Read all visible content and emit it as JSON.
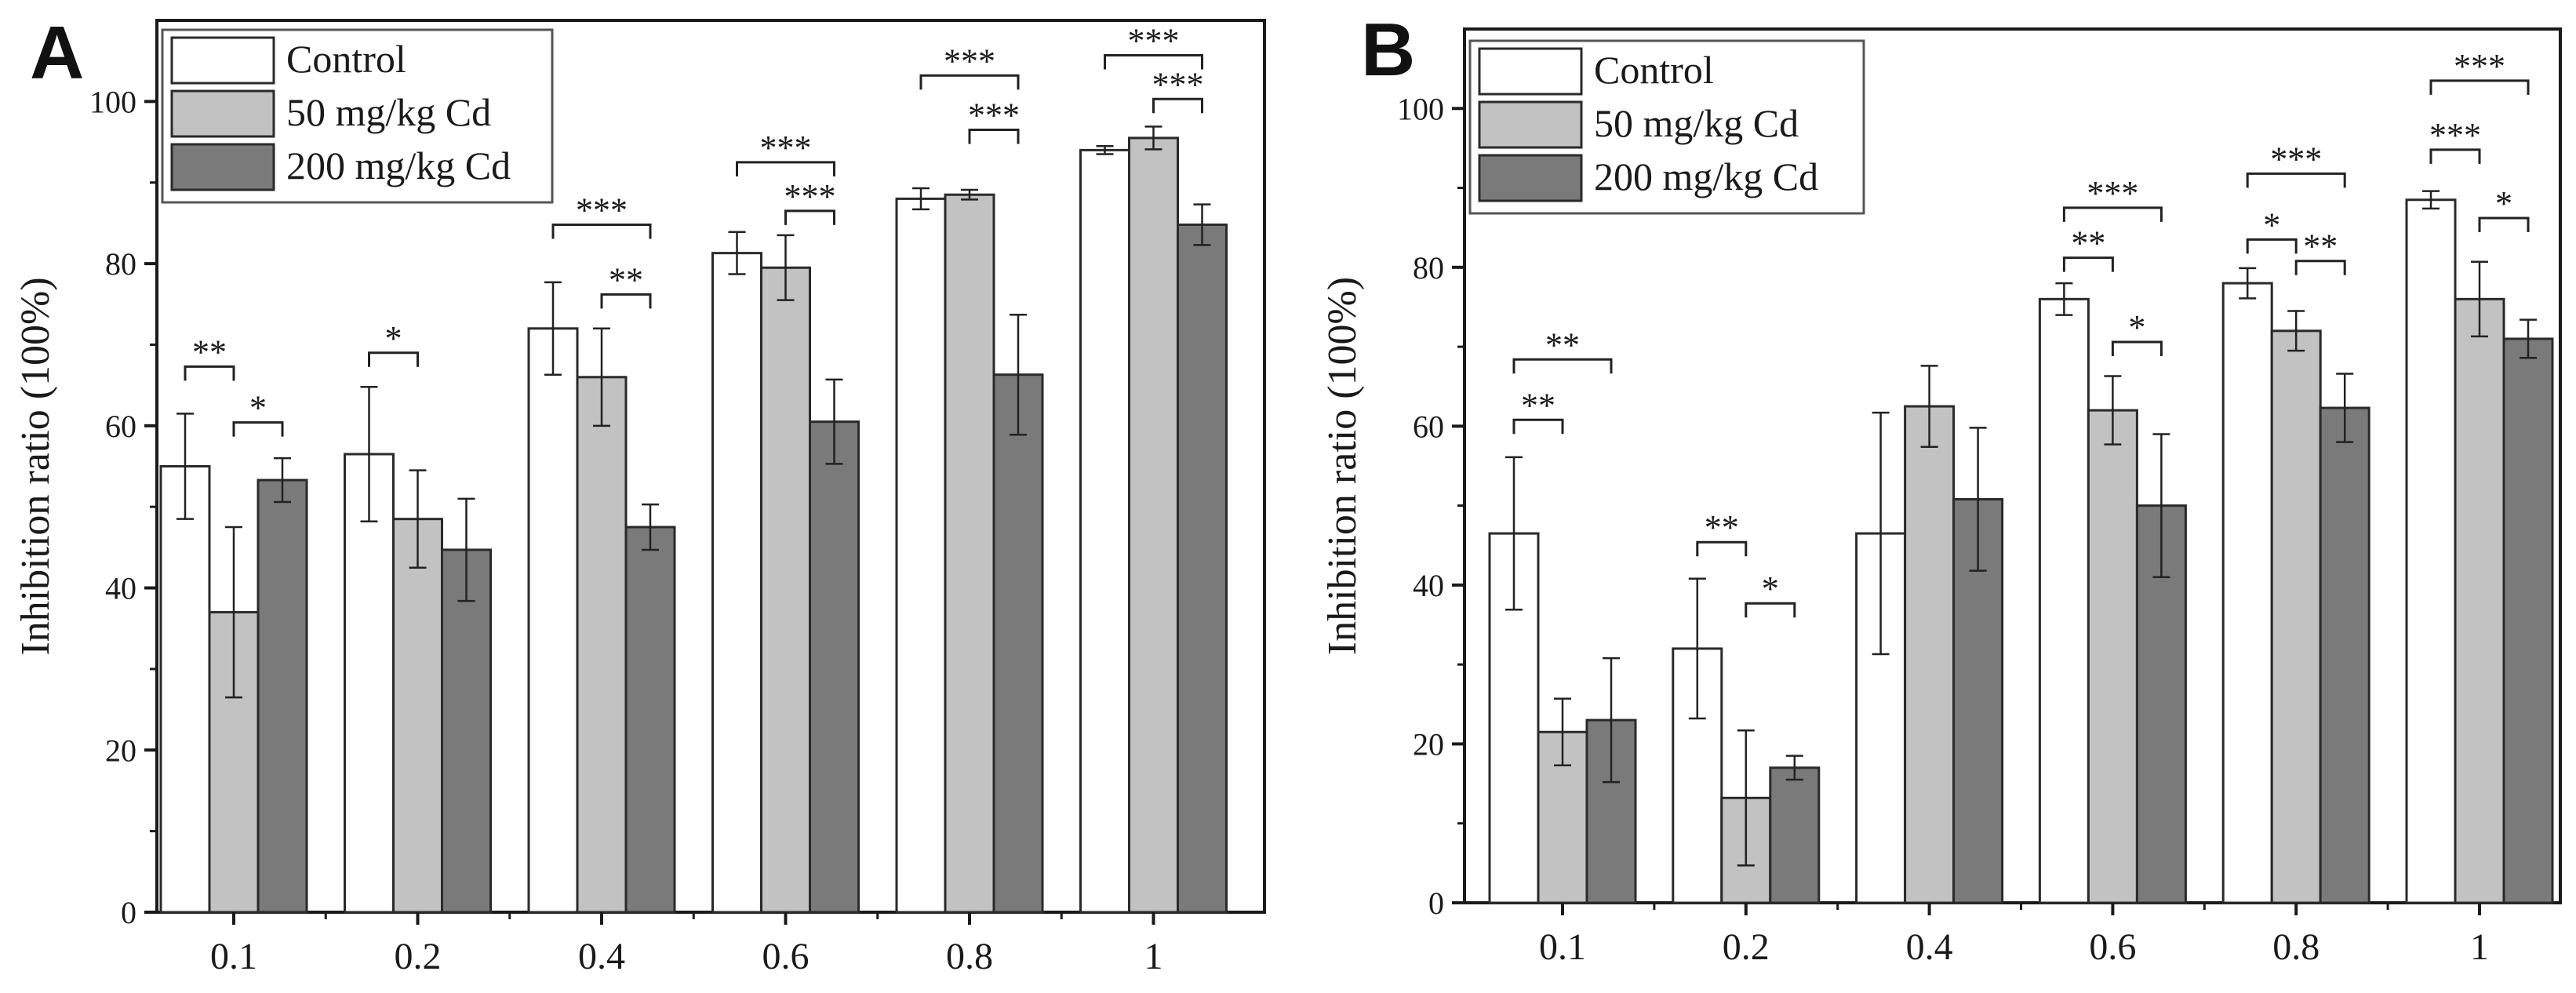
{
  "colors": {
    "control": "#ffffff",
    "cd50": "#c2c2c2",
    "cd200": "#7a7a7a",
    "axis": "#1a1a1a"
  },
  "chart_data": [
    {
      "type": "bar",
      "panel": "A",
      "title": "",
      "xlabel": "",
      "ylabel": "Inhibition ratio (100%)",
      "ylim": [
        0,
        110
      ],
      "yticks": [
        "0",
        "20",
        "40",
        "60",
        "80",
        "100"
      ],
      "categories": [
        "0.1",
        "0.2",
        "0.4",
        "0.6",
        "0.8",
        "1"
      ],
      "legend": {
        "placement": "top-left",
        "entries": [
          "Control",
          "50 mg/kg Cd",
          "200 mg/kg Cd"
        ]
      },
      "series": [
        {
          "name": "Control",
          "values": [
            55,
            56.5,
            72,
            81.3,
            88,
            94
          ],
          "errors": [
            6.5,
            8.3,
            5.7,
            2.6,
            1.3,
            0.5
          ]
        },
        {
          "name": "50 mg/kg Cd",
          "values": [
            37,
            48.5,
            66,
            79.5,
            88.5,
            95.5
          ],
          "errors": [
            10.5,
            6.0,
            6.0,
            4.0,
            0.6,
            1.4
          ]
        },
        {
          "name": "200 mg/kg Cd",
          "values": [
            53.3,
            44.7,
            47.5,
            60.5,
            66.3,
            84.8
          ],
          "errors": [
            2.7,
            6.3,
            2.8,
            5.2,
            7.4,
            2.5
          ]
        }
      ],
      "significance": [
        {
          "category": 0,
          "from": 0,
          "to": 1,
          "label": "**",
          "y": 67.3
        },
        {
          "category": 0,
          "from": 1,
          "to": 2,
          "label": "*",
          "y": 60.4
        },
        {
          "category": 1,
          "from": 0,
          "to": 1,
          "label": "*",
          "y": 69
        },
        {
          "category": 2,
          "from": 0,
          "to": 2,
          "label": "***",
          "y": 84.8
        },
        {
          "category": 2,
          "from": 1,
          "to": 2,
          "label": "**",
          "y": 76.2
        },
        {
          "category": 3,
          "from": 0,
          "to": 2,
          "label": "***",
          "y": 92.5
        },
        {
          "category": 3,
          "from": 1,
          "to": 2,
          "label": "***",
          "y": 86.5
        },
        {
          "category": 4,
          "from": 0,
          "to": 2,
          "label": "***",
          "y": 103.2
        },
        {
          "category": 4,
          "from": 1,
          "to": 2,
          "label": "***",
          "y": 96.5
        },
        {
          "category": 5,
          "from": 0,
          "to": 2,
          "label": "***",
          "y": 105.7
        },
        {
          "category": 5,
          "from": 1,
          "to": 2,
          "label": "***",
          "y": 100.3
        }
      ]
    },
    {
      "type": "bar",
      "panel": "B",
      "title": "",
      "xlabel": "",
      "ylabel": "Inhibition ratio (100%)",
      "ylim": [
        0,
        110
      ],
      "yticks": [
        "0",
        "20",
        "40",
        "60",
        "80",
        "100"
      ],
      "categories": [
        "0.1",
        "0.2",
        "0.4",
        "0.6",
        "0.8",
        "1"
      ],
      "legend": {
        "placement": "top-left",
        "entries": [
          "Control",
          "50 mg/kg Cd",
          "200 mg/kg Cd"
        ]
      },
      "series": [
        {
          "name": "Control",
          "values": [
            46.5,
            32,
            46.5,
            76,
            78,
            88.5
          ],
          "errors": [
            9.6,
            8.8,
            15.2,
            2.0,
            1.9,
            1.1
          ]
        },
        {
          "name": "50 mg/kg Cd",
          "values": [
            21.5,
            13.2,
            62.5,
            62,
            72,
            76
          ],
          "errors": [
            4.2,
            8.5,
            5.1,
            4.3,
            2.5,
            4.7
          ]
        },
        {
          "name": "200 mg/kg Cd",
          "values": [
            23,
            17,
            50.8,
            50,
            62.3,
            71
          ],
          "errors": [
            7.8,
            1.5,
            9.0,
            9.0,
            4.3,
            2.4
          ]
        }
      ],
      "significance": [
        {
          "category": 0,
          "from": 0,
          "to": 2,
          "label": "**",
          "y": 68.4
        },
        {
          "category": 0,
          "from": 0,
          "to": 1,
          "label": "**",
          "y": 60.8
        },
        {
          "category": 1,
          "from": 0,
          "to": 1,
          "label": "**",
          "y": 45.4
        },
        {
          "category": 1,
          "from": 1,
          "to": 2,
          "label": "*",
          "y": 37.7
        },
        {
          "category": 3,
          "from": 0,
          "to": 2,
          "label": "***",
          "y": 87.5
        },
        {
          "category": 3,
          "from": 0,
          "to": 1,
          "label": "**",
          "y": 81.2
        },
        {
          "category": 3,
          "from": 1,
          "to": 2,
          "label": "*",
          "y": 70.6
        },
        {
          "category": 4,
          "from": 0,
          "to": 2,
          "label": "***",
          "y": 91.8
        },
        {
          "category": 4,
          "from": 0,
          "to": 1,
          "label": "*",
          "y": 83.5
        },
        {
          "category": 4,
          "from": 1,
          "to": 2,
          "label": "**",
          "y": 80.8
        },
        {
          "category": 5,
          "from": 0,
          "to": 2,
          "label": "***",
          "y": 103.5
        },
        {
          "category": 5,
          "from": 0,
          "to": 1,
          "label": "***",
          "y": 94.8
        },
        {
          "category": 5,
          "from": 1,
          "to": 2,
          "label": "*",
          "y": 86.2
        }
      ]
    }
  ]
}
